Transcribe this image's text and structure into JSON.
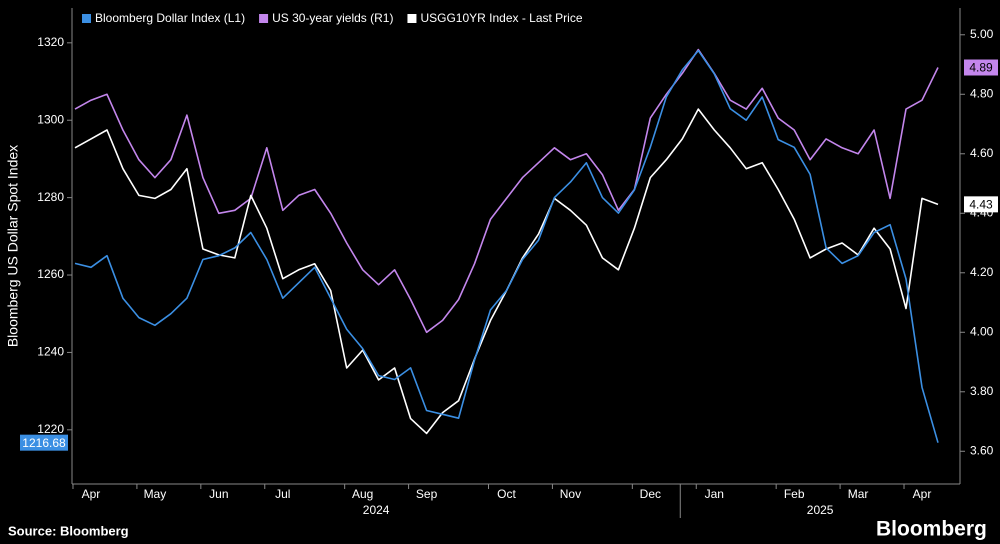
{
  "chart_data": {
    "type": "line",
    "y_label": "Bloomberg US Dollar Spot Index",
    "source": "Source: Bloomberg",
    "brand": "Bloomberg",
    "categories": [
      null,
      "Apr",
      null,
      null,
      null,
      "May",
      null,
      null,
      null,
      "Jun",
      null,
      null,
      null,
      "Jul",
      null,
      null,
      null,
      null,
      "Aug",
      null,
      null,
      null,
      "Sep",
      null,
      null,
      null,
      null,
      "Oct",
      null,
      null,
      null,
      "Nov",
      null,
      null,
      null,
      null,
      "Dec",
      null,
      null,
      null,
      "Jan",
      null,
      null,
      null,
      null,
      "Feb",
      null,
      null,
      null,
      "Mar",
      null,
      null,
      null,
      "Apr",
      null
    ],
    "year_labels": [
      "2024",
      "2025"
    ],
    "ylim": [
      1206,
      1329
    ],
    "yticks": [
      1220,
      1240,
      1260,
      1280,
      1300,
      1320
    ],
    "y2lim": [
      3.49,
      5.09
    ],
    "y2ticks": [
      {
        "value": 3.6,
        "label": "3.60"
      },
      {
        "value": 3.8,
        "label": "3.80"
      },
      {
        "value": 4.0,
        "label": "4.00"
      },
      {
        "value": 4.2,
        "label": "4.20"
      },
      {
        "value": 4.4,
        "label": "4.40"
      },
      {
        "value": 4.6,
        "label": "4.60"
      },
      {
        "value": 4.8,
        "label": "4.80"
      },
      {
        "value": 5.0,
        "label": "5.00"
      }
    ],
    "grid": false,
    "series": [
      {
        "name": "Bloomberg Dollar Index (L1)",
        "color": "#3b8fe3",
        "axis": "y",
        "last_label": "1216.68",
        "values": [
          1263,
          1262,
          1265,
          1254,
          1249,
          1247,
          1250,
          1254,
          1264,
          1265,
          1267,
          1271,
          1264,
          1254,
          1258,
          1262,
          1254,
          1246,
          1241,
          1234,
          1233,
          1236,
          1225,
          1224,
          1223,
          1238,
          1251,
          1256,
          1264,
          1269,
          1280,
          1284,
          1289,
          1280,
          1276,
          1282,
          1293,
          1306,
          1313,
          1318,
          1312,
          1303,
          1300,
          1306,
          1295,
          1293,
          1286,
          1267,
          1263,
          1265,
          1271,
          1273,
          1259,
          1231,
          1216.68
        ]
      },
      {
        "name": "US 30-year yields  (R1)",
        "color": "#c386ec",
        "axis": "y2",
        "last_label": "4.89",
        "values": [
          4.75,
          4.78,
          4.8,
          4.68,
          4.58,
          4.52,
          4.58,
          4.73,
          4.52,
          4.4,
          4.41,
          4.45,
          4.62,
          4.41,
          4.46,
          4.48,
          4.4,
          4.3,
          4.21,
          4.16,
          4.21,
          4.11,
          4.0,
          4.04,
          4.11,
          4.23,
          4.38,
          4.45,
          4.52,
          4.57,
          4.62,
          4.58,
          4.6,
          4.53,
          4.41,
          4.48,
          4.72,
          4.8,
          4.87,
          4.95,
          4.87,
          4.78,
          4.75,
          4.82,
          4.72,
          4.68,
          4.58,
          4.65,
          4.62,
          4.6,
          4.68,
          4.45,
          4.75,
          4.78,
          4.89
        ]
      },
      {
        "name": "USGG10YR Index - Last Price",
        "color": "#ffffff",
        "axis": "y2",
        "last_label": "4.43",
        "values": [
          4.62,
          4.65,
          4.68,
          4.55,
          4.46,
          4.45,
          4.48,
          4.55,
          4.28,
          4.26,
          4.25,
          4.46,
          4.35,
          4.18,
          4.21,
          4.23,
          4.14,
          3.88,
          3.94,
          3.84,
          3.88,
          3.71,
          3.66,
          3.73,
          3.77,
          3.91,
          4.04,
          4.14,
          4.25,
          4.33,
          4.45,
          4.41,
          4.36,
          4.25,
          4.21,
          4.35,
          4.52,
          4.58,
          4.65,
          4.75,
          4.68,
          4.62,
          4.55,
          4.57,
          4.48,
          4.38,
          4.25,
          4.28,
          4.3,
          4.26,
          4.35,
          4.28,
          4.08,
          4.45,
          4.43
        ]
      }
    ]
  }
}
